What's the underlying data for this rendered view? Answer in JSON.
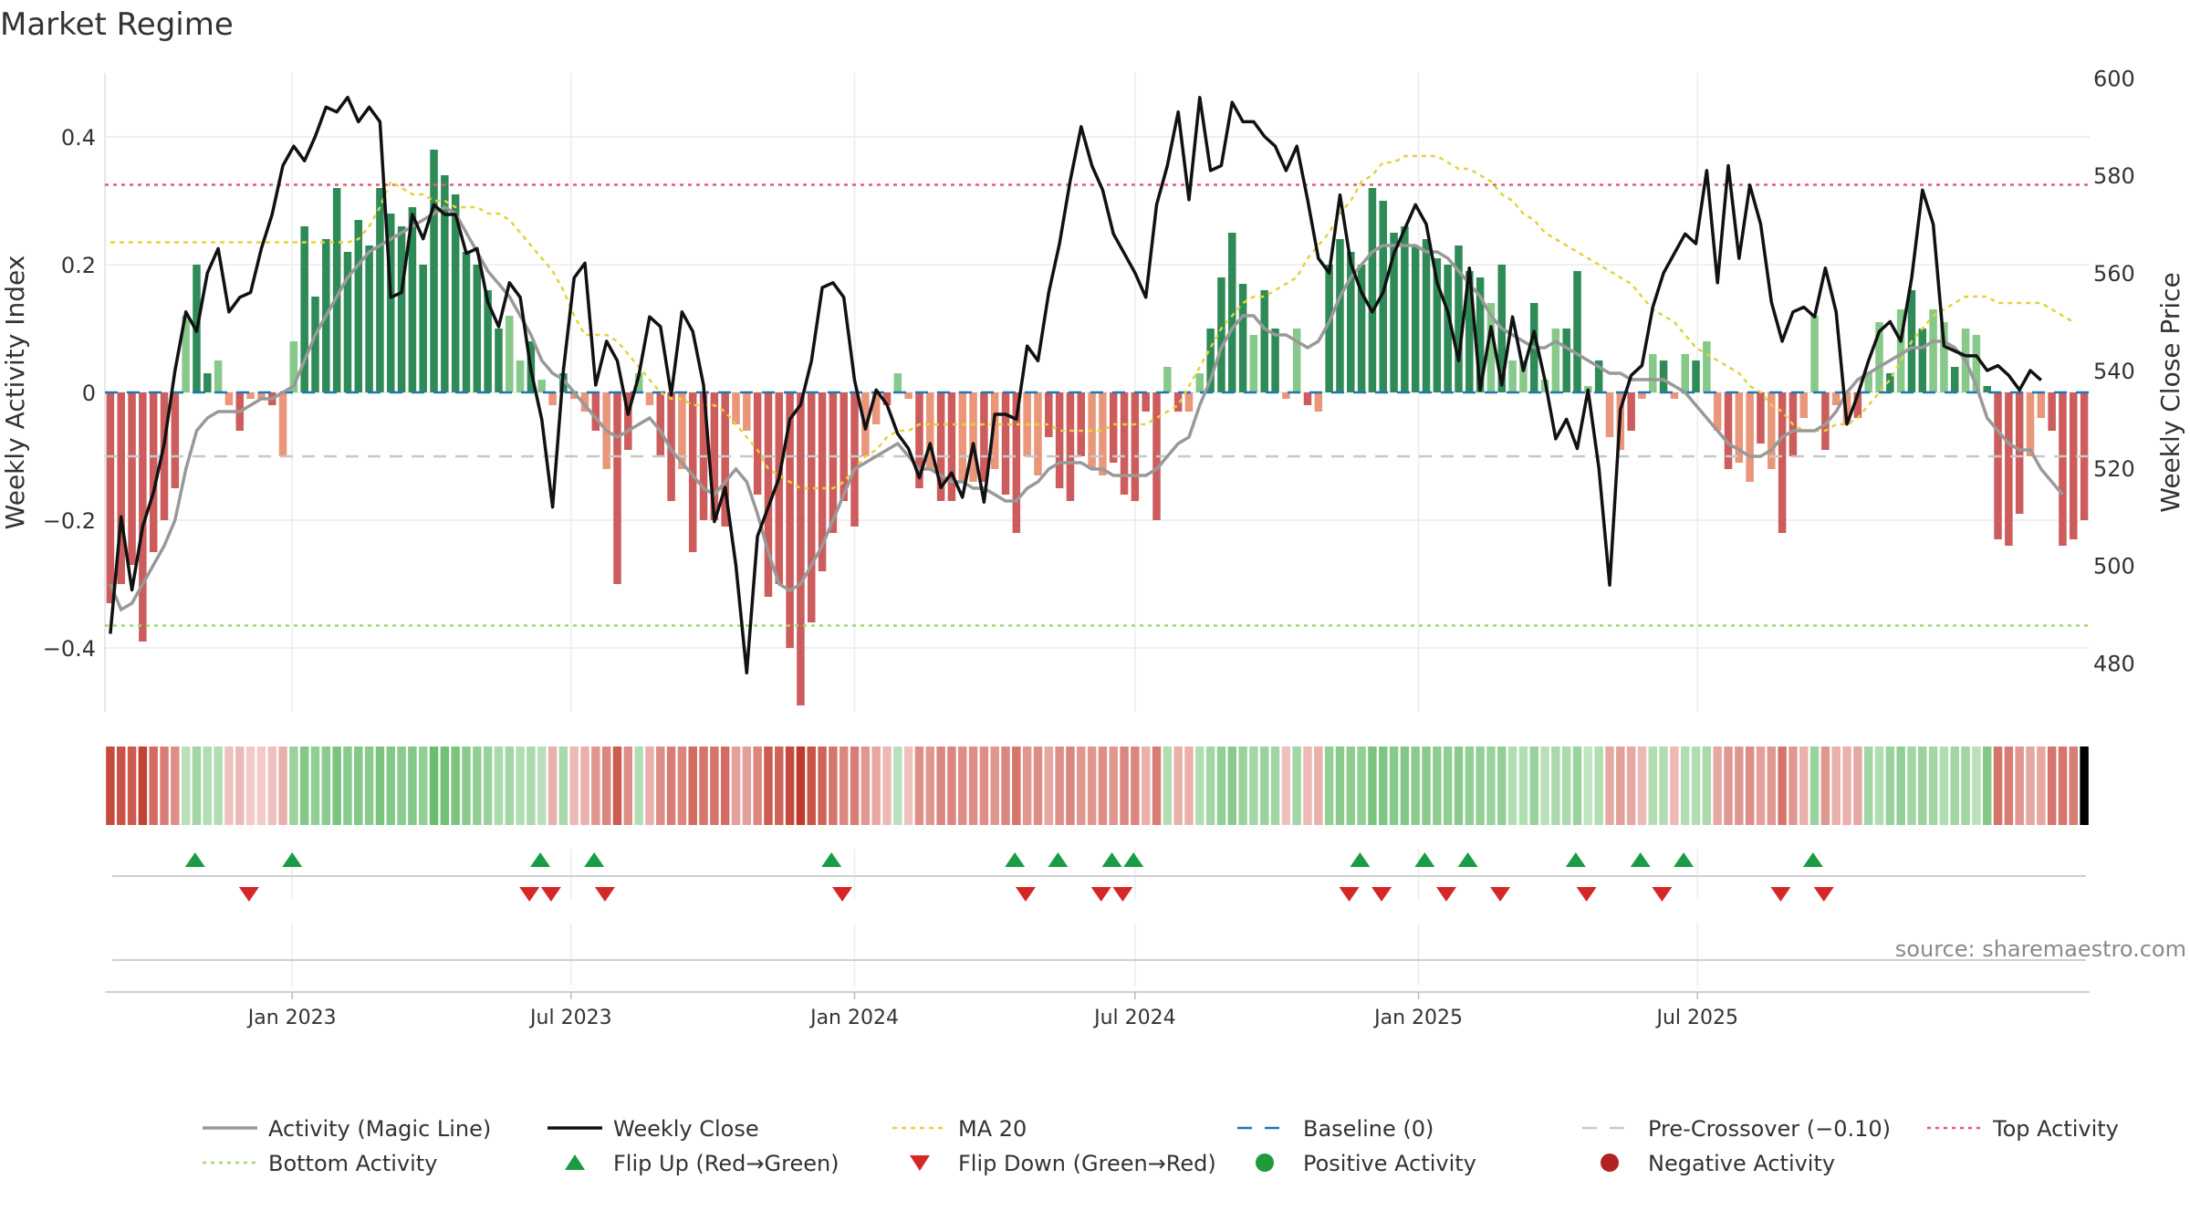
{
  "title": "Market Regime",
  "source": "source: sharemaestro.com",
  "colors": {
    "pos_strong": "#2e8b57",
    "pos_light": "#86c98a",
    "neg_strong": "#cd5c5c",
    "neg_light": "#e9967a",
    "close": "#111111",
    "magic": "#999999",
    "ma20": "#e3d23c",
    "baseline": "#1f77b4",
    "precross": "#c8c8c8",
    "top": "#d9607a",
    "bottom": "#9fd86a",
    "flip_up": "#1a9c45",
    "flip_down": "#d62728",
    "pos_dot": "#1f9a3a",
    "neg_dot": "#b22222"
  },
  "chart_data": {
    "type": "bar",
    "x_start": "2022-09-05",
    "x_step_days": 7,
    "x_ticks": [
      "Jan 2023",
      "Jul 2023",
      "Jan 2024",
      "Jul 2024",
      "Jan 2025",
      "Jul 2025"
    ],
    "x_tick_dates": [
      "2023-01-01",
      "2023-07-01",
      "2024-01-01",
      "2024-07-01",
      "2025-01-01",
      "2025-07-01"
    ],
    "ylabel": "Weekly Activity Index",
    "y2label": "Weekly Close Price",
    "ylim": [
      -0.5,
      0.5
    ],
    "y_ticks": [
      -0.4,
      -0.2,
      0,
      0.2,
      0.4
    ],
    "y_tick_labels": [
      "−0.4",
      "−0.2",
      "0",
      "0.2",
      "0.4"
    ],
    "y2lim": [
      470,
      601
    ],
    "y2_ticks": [
      480,
      500,
      520,
      540,
      560,
      580,
      600
    ],
    "top_activity": 0.325,
    "bottom_activity": -0.365,
    "pre_crossover": -0.1,
    "activity": [
      -0.33,
      -0.3,
      -0.27,
      -0.39,
      -0.25,
      -0.2,
      -0.15,
      0.12,
      0.2,
      0.03,
      0.05,
      -0.02,
      -0.06,
      -0.01,
      -0.01,
      -0.02,
      -0.1,
      0.08,
      0.26,
      0.15,
      0.24,
      0.32,
      0.22,
      0.27,
      0.23,
      0.32,
      0.28,
      0.26,
      0.29,
      0.2,
      0.38,
      0.34,
      0.31,
      0.22,
      0.2,
      0.16,
      0.1,
      0.12,
      0.05,
      0.08,
      0.02,
      -0.02,
      0.03,
      -0.01,
      -0.03,
      -0.06,
      -0.12,
      -0.3,
      -0.09,
      0.03,
      -0.02,
      -0.1,
      -0.17,
      -0.12,
      -0.25,
      -0.2,
      -0.2,
      -0.21,
      -0.05,
      -0.06,
      -0.16,
      -0.32,
      -0.3,
      -0.4,
      -0.49,
      -0.36,
      -0.28,
      -0.22,
      -0.17,
      -0.21,
      -0.1,
      -0.05,
      -0.02,
      0.03,
      -0.01,
      -0.15,
      -0.12,
      -0.17,
      -0.17,
      -0.14,
      -0.14,
      -0.14,
      -0.12,
      -0.16,
      -0.22,
      -0.1,
      -0.13,
      -0.07,
      -0.15,
      -0.17,
      -0.1,
      -0.12,
      -0.13,
      -0.11,
      -0.16,
      -0.17,
      -0.03,
      -0.2,
      0.04,
      -0.03,
      -0.03,
      0.03,
      0.1,
      0.18,
      0.25,
      0.17,
      0.09,
      0.16,
      0.1,
      -0.01,
      0.1,
      -0.02,
      -0.03,
      0.2,
      0.24,
      0.22,
      0.2,
      0.32,
      0.3,
      0.25,
      0.26,
      0.23,
      0.24,
      0.21,
      0.2,
      0.23,
      0.19,
      0.18,
      0.14,
      0.2,
      0.05,
      0.05,
      0.14,
      0.02,
      0.1,
      0.1,
      0.19,
      0.01,
      0.05,
      -0.07,
      -0.09,
      -0.06,
      -0.01,
      0.06,
      0.05,
      -0.01,
      0.06,
      0.05,
      0.08,
      -0.06,
      -0.12,
      -0.11,
      -0.14,
      -0.08,
      -0.12,
      -0.22,
      -0.1,
      -0.04,
      0.12,
      -0.09,
      -0.02,
      -0.05,
      -0.04,
      0.03,
      0.11,
      0.03,
      0.13,
      0.16,
      0.1,
      0.13,
      0.11,
      0.04,
      0.1,
      0.09,
      0.01,
      -0.23,
      -0.24,
      -0.19,
      -0.1,
      -0.04,
      -0.06,
      -0.24,
      -0.23,
      -0.2
    ],
    "close": [
      486,
      510,
      495,
      508,
      515,
      525,
      540,
      552,
      548,
      560,
      565,
      552,
      555,
      556,
      565,
      572,
      582,
      586,
      583,
      588,
      594,
      593,
      596,
      591,
      594,
      591,
      555,
      556,
      572,
      567,
      574,
      572,
      572,
      564,
      565,
      554,
      549,
      558,
      555,
      540,
      530,
      512,
      540,
      559,
      562,
      537,
      546,
      542,
      531,
      539,
      551,
      549,
      535,
      552,
      548,
      537,
      509,
      516,
      500,
      478,
      506,
      512,
      518,
      530,
      533,
      542,
      557,
      558,
      555,
      538,
      528,
      536,
      533,
      527,
      524,
      518,
      525,
      516,
      519,
      514,
      525,
      513,
      531,
      531,
      530,
      545,
      542,
      556,
      566,
      579,
      590,
      582,
      577,
      568,
      564,
      560,
      555,
      574,
      582,
      593,
      575,
      596,
      581,
      582,
      595,
      591,
      591,
      588,
      586,
      581,
      586,
      575,
      563,
      560,
      576,
      562,
      556,
      552,
      556,
      564,
      569,
      574,
      570,
      558,
      552,
      542,
      561,
      536,
      549,
      537,
      551,
      540,
      548,
      538,
      526,
      530,
      524,
      536,
      520,
      496,
      532,
      539,
      541,
      553,
      560,
      564,
      568,
      566,
      581,
      558,
      582,
      563,
      578,
      570,
      554,
      546,
      552,
      553,
      551,
      561,
      552,
      529,
      535,
      542,
      548,
      550,
      546,
      559,
      577,
      570,
      545,
      544,
      543,
      543,
      540,
      541,
      539,
      536,
      540,
      538
    ],
    "magic": [
      -0.3,
      -0.34,
      -0.33,
      -0.3,
      -0.27,
      -0.24,
      -0.2,
      -0.12,
      -0.06,
      -0.04,
      -0.03,
      -0.03,
      -0.03,
      -0.02,
      -0.01,
      -0.01,
      0.0,
      0.01,
      0.05,
      0.09,
      0.12,
      0.15,
      0.18,
      0.2,
      0.22,
      0.23,
      0.24,
      0.25,
      0.26,
      0.27,
      0.28,
      0.29,
      0.28,
      0.25,
      0.22,
      0.19,
      0.17,
      0.15,
      0.12,
      0.09,
      0.05,
      0.03,
      0.02,
      0.0,
      -0.02,
      -0.04,
      -0.06,
      -0.07,
      -0.06,
      -0.05,
      -0.04,
      -0.06,
      -0.09,
      -0.11,
      -0.13,
      -0.15,
      -0.16,
      -0.14,
      -0.12,
      -0.14,
      -0.19,
      -0.25,
      -0.3,
      -0.31,
      -0.3,
      -0.27,
      -0.24,
      -0.2,
      -0.16,
      -0.12,
      -0.11,
      -0.1,
      -0.09,
      -0.08,
      -0.1,
      -0.12,
      -0.12,
      -0.13,
      -0.14,
      -0.14,
      -0.15,
      -0.15,
      -0.16,
      -0.17,
      -0.17,
      -0.15,
      -0.14,
      -0.12,
      -0.11,
      -0.11,
      -0.11,
      -0.12,
      -0.12,
      -0.13,
      -0.13,
      -0.13,
      -0.13,
      -0.12,
      -0.1,
      -0.08,
      -0.07,
      -0.02,
      0.02,
      0.07,
      0.1,
      0.12,
      0.12,
      0.1,
      0.09,
      0.09,
      0.08,
      0.07,
      0.08,
      0.11,
      0.15,
      0.18,
      0.2,
      0.22,
      0.23,
      0.23,
      0.23,
      0.23,
      0.22,
      0.22,
      0.21,
      0.19,
      0.17,
      0.15,
      0.12,
      0.1,
      0.09,
      0.08,
      0.07,
      0.07,
      0.08,
      0.07,
      0.06,
      0.05,
      0.04,
      0.03,
      0.03,
      0.02,
      0.02,
      0.02,
      0.02,
      0.01,
      0.0,
      -0.02,
      -0.04,
      -0.06,
      -0.08,
      -0.09,
      -0.1,
      -0.1,
      -0.09,
      -0.07,
      -0.06,
      -0.06,
      -0.06,
      -0.05,
      -0.03,
      0.0,
      0.02,
      0.03,
      0.04,
      0.05,
      0.06,
      0.07,
      0.07,
      0.08,
      0.08,
      0.07,
      0.05,
      0.01,
      -0.04,
      -0.06,
      -0.08,
      -0.09,
      -0.09,
      -0.12,
      -0.14,
      -0.16
    ],
    "ma20": [
      0.235,
      0.235,
      0.235,
      0.235,
      0.235,
      0.235,
      0.235,
      0.235,
      0.235,
      0.235,
      0.235,
      0.235,
      0.235,
      0.235,
      0.235,
      0.235,
      0.235,
      0.235,
      0.235,
      0.235,
      0.235,
      0.235,
      0.235,
      0.24,
      0.26,
      0.29,
      0.33,
      0.32,
      0.31,
      0.31,
      0.3,
      0.3,
      0.29,
      0.29,
      0.29,
      0.28,
      0.28,
      0.27,
      0.25,
      0.23,
      0.21,
      0.19,
      0.16,
      0.12,
      0.09,
      0.09,
      0.09,
      0.08,
      0.06,
      0.04,
      0.02,
      0.0,
      -0.01,
      -0.01,
      -0.02,
      -0.02,
      -0.02,
      -0.03,
      -0.05,
      -0.07,
      -0.09,
      -0.12,
      -0.13,
      -0.14,
      -0.15,
      -0.15,
      -0.15,
      -0.15,
      -0.14,
      -0.12,
      -0.1,
      -0.09,
      -0.07,
      -0.06,
      -0.06,
      -0.05,
      -0.05,
      -0.05,
      -0.05,
      -0.05,
      -0.05,
      -0.05,
      -0.05,
      -0.05,
      -0.05,
      -0.05,
      -0.05,
      -0.05,
      -0.06,
      -0.06,
      -0.06,
      -0.06,
      -0.06,
      -0.05,
      -0.05,
      -0.05,
      -0.05,
      -0.04,
      -0.03,
      -0.02,
      0.01,
      0.04,
      0.07,
      0.1,
      0.12,
      0.14,
      0.15,
      0.15,
      0.16,
      0.17,
      0.18,
      0.21,
      0.23,
      0.25,
      0.28,
      0.3,
      0.33,
      0.34,
      0.36,
      0.36,
      0.37,
      0.37,
      0.37,
      0.37,
      0.36,
      0.35,
      0.35,
      0.34,
      0.33,
      0.31,
      0.3,
      0.28,
      0.27,
      0.25,
      0.24,
      0.23,
      0.22,
      0.21,
      0.2,
      0.19,
      0.18,
      0.17,
      0.15,
      0.13,
      0.12,
      0.11,
      0.09,
      0.07,
      0.06,
      0.05,
      0.04,
      0.03,
      0.01,
      0.0,
      -0.02,
      -0.03,
      -0.05,
      -0.06,
      -0.06,
      -0.06,
      -0.05,
      -0.05,
      -0.04,
      -0.02,
      0.0,
      0.02,
      0.05,
      0.08,
      0.1,
      0.12,
      0.13,
      0.14,
      0.15,
      0.15,
      0.15,
      0.14,
      0.14,
      0.14,
      0.14,
      0.14,
      0.13,
      0.12,
      0.11
    ],
    "strip_intensity": [
      0.9,
      0.85,
      0.8,
      0.95,
      0.7,
      0.6,
      0.5,
      0.3,
      0.45,
      0.35,
      0.35,
      0.2,
      0.25,
      0.15,
      0.15,
      0.2,
      0.3,
      0.5,
      0.65,
      0.55,
      0.6,
      0.7,
      0.6,
      0.65,
      0.6,
      0.7,
      0.65,
      0.6,
      0.65,
      0.55,
      0.8,
      0.75,
      0.7,
      0.6,
      0.55,
      0.5,
      0.4,
      0.45,
      0.35,
      0.4,
      0.3,
      0.3,
      0.4,
      0.25,
      0.3,
      0.45,
      0.55,
      0.8,
      0.5,
      0.35,
      0.3,
      0.5,
      0.6,
      0.55,
      0.7,
      0.65,
      0.65,
      0.7,
      0.4,
      0.4,
      0.55,
      0.8,
      0.75,
      0.9,
      1.0,
      0.85,
      0.75,
      0.65,
      0.55,
      0.6,
      0.45,
      0.35,
      0.25,
      0.3,
      0.2,
      0.5,
      0.45,
      0.55,
      0.55,
      0.5,
      0.5,
      0.5,
      0.45,
      0.55,
      0.65,
      0.45,
      0.5,
      0.35,
      0.5,
      0.55,
      0.45,
      0.45,
      0.5,
      0.45,
      0.55,
      0.55,
      0.3,
      0.6,
      0.35,
      0.3,
      0.3,
      0.35,
      0.45,
      0.55,
      0.6,
      0.5,
      0.45,
      0.5,
      0.45,
      0.2,
      0.45,
      0.25,
      0.3,
      0.55,
      0.6,
      0.58,
      0.55,
      0.7,
      0.68,
      0.62,
      0.64,
      0.6,
      0.6,
      0.58,
      0.56,
      0.6,
      0.55,
      0.54,
      0.5,
      0.55,
      0.35,
      0.35,
      0.5,
      0.3,
      0.4,
      0.4,
      0.5,
      0.25,
      0.35,
      0.35,
      0.4,
      0.35,
      0.25,
      0.35,
      0.35,
      0.25,
      0.35,
      0.35,
      0.4,
      0.35,
      0.45,
      0.45,
      0.5,
      0.4,
      0.45,
      0.65,
      0.45,
      0.3,
      0.5,
      0.45,
      0.3,
      0.3,
      0.35,
      0.45,
      0.35,
      0.5,
      0.55,
      0.45,
      0.5,
      0.45,
      0.35,
      0.45,
      0.45,
      0.3,
      0.65,
      0.65,
      0.6,
      0.45,
      0.35,
      0.35,
      0.65,
      0.65,
      0.6
    ],
    "flip_up_dates": [
      "2022-10-30",
      "2023-01-01",
      "2023-06-11",
      "2023-07-16",
      "2023-12-17",
      "2024-04-14",
      "2024-05-12",
      "2024-06-16",
      "2024-06-30",
      "2024-11-24",
      "2025-01-05",
      "2025-02-02",
      "2025-04-13",
      "2025-05-25",
      "2025-06-22",
      "2025-09-14"
    ],
    "flip_down_dates": [
      "2022-12-04",
      "2023-06-04",
      "2023-06-18",
      "2023-07-23",
      "2023-12-24",
      "2024-04-21",
      "2024-06-09",
      "2024-06-23",
      "2024-11-17",
      "2024-12-08",
      "2025-01-19",
      "2025-02-23",
      "2025-04-20",
      "2025-06-08",
      "2025-08-24",
      "2025-09-21"
    ],
    "legend": [
      "Activity (Magic Line)",
      "Weekly Close",
      "MA 20",
      "Baseline (0)",
      "Pre-Crossover (−0.10)",
      "Top Activity",
      "Bottom Activity",
      "Flip Up (Red→Green)",
      "Flip Down (Green→Red)",
      "Positive Activity",
      "Negative Activity"
    ],
    "legend_position": "bottom"
  }
}
